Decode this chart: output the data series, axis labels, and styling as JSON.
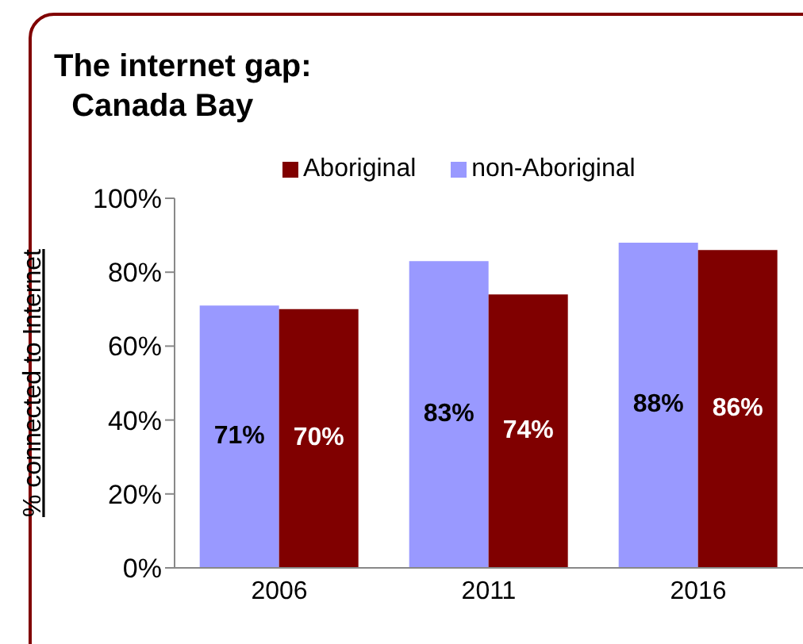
{
  "chart_data": {
    "type": "bar",
    "title": "The internet gap:\n  Canada Bay",
    "ylabel": "% connected to Internet",
    "categories": [
      "2006",
      "2011",
      "2016"
    ],
    "series": [
      {
        "name": "non-Aboriginal",
        "color": "#9999ff",
        "values": [
          71,
          83,
          88
        ],
        "value_labels": [
          "71%",
          "83%",
          "88%"
        ]
      },
      {
        "name": "Aboriginal",
        "color": "#800000",
        "values": [
          70,
          74,
          86
        ],
        "value_labels": [
          "70%",
          "74%",
          "86%"
        ]
      }
    ],
    "ylim": [
      0,
      100
    ],
    "yticks": [
      {
        "value": 0,
        "label": "0%"
      },
      {
        "value": 20,
        "label": "20%"
      },
      {
        "value": 40,
        "label": "40%"
      },
      {
        "value": 60,
        "label": "60%"
      },
      {
        "value": 80,
        "label": "80%"
      },
      {
        "value": 100,
        "label": "100%"
      }
    ],
    "grid": false,
    "legend": "top"
  }
}
